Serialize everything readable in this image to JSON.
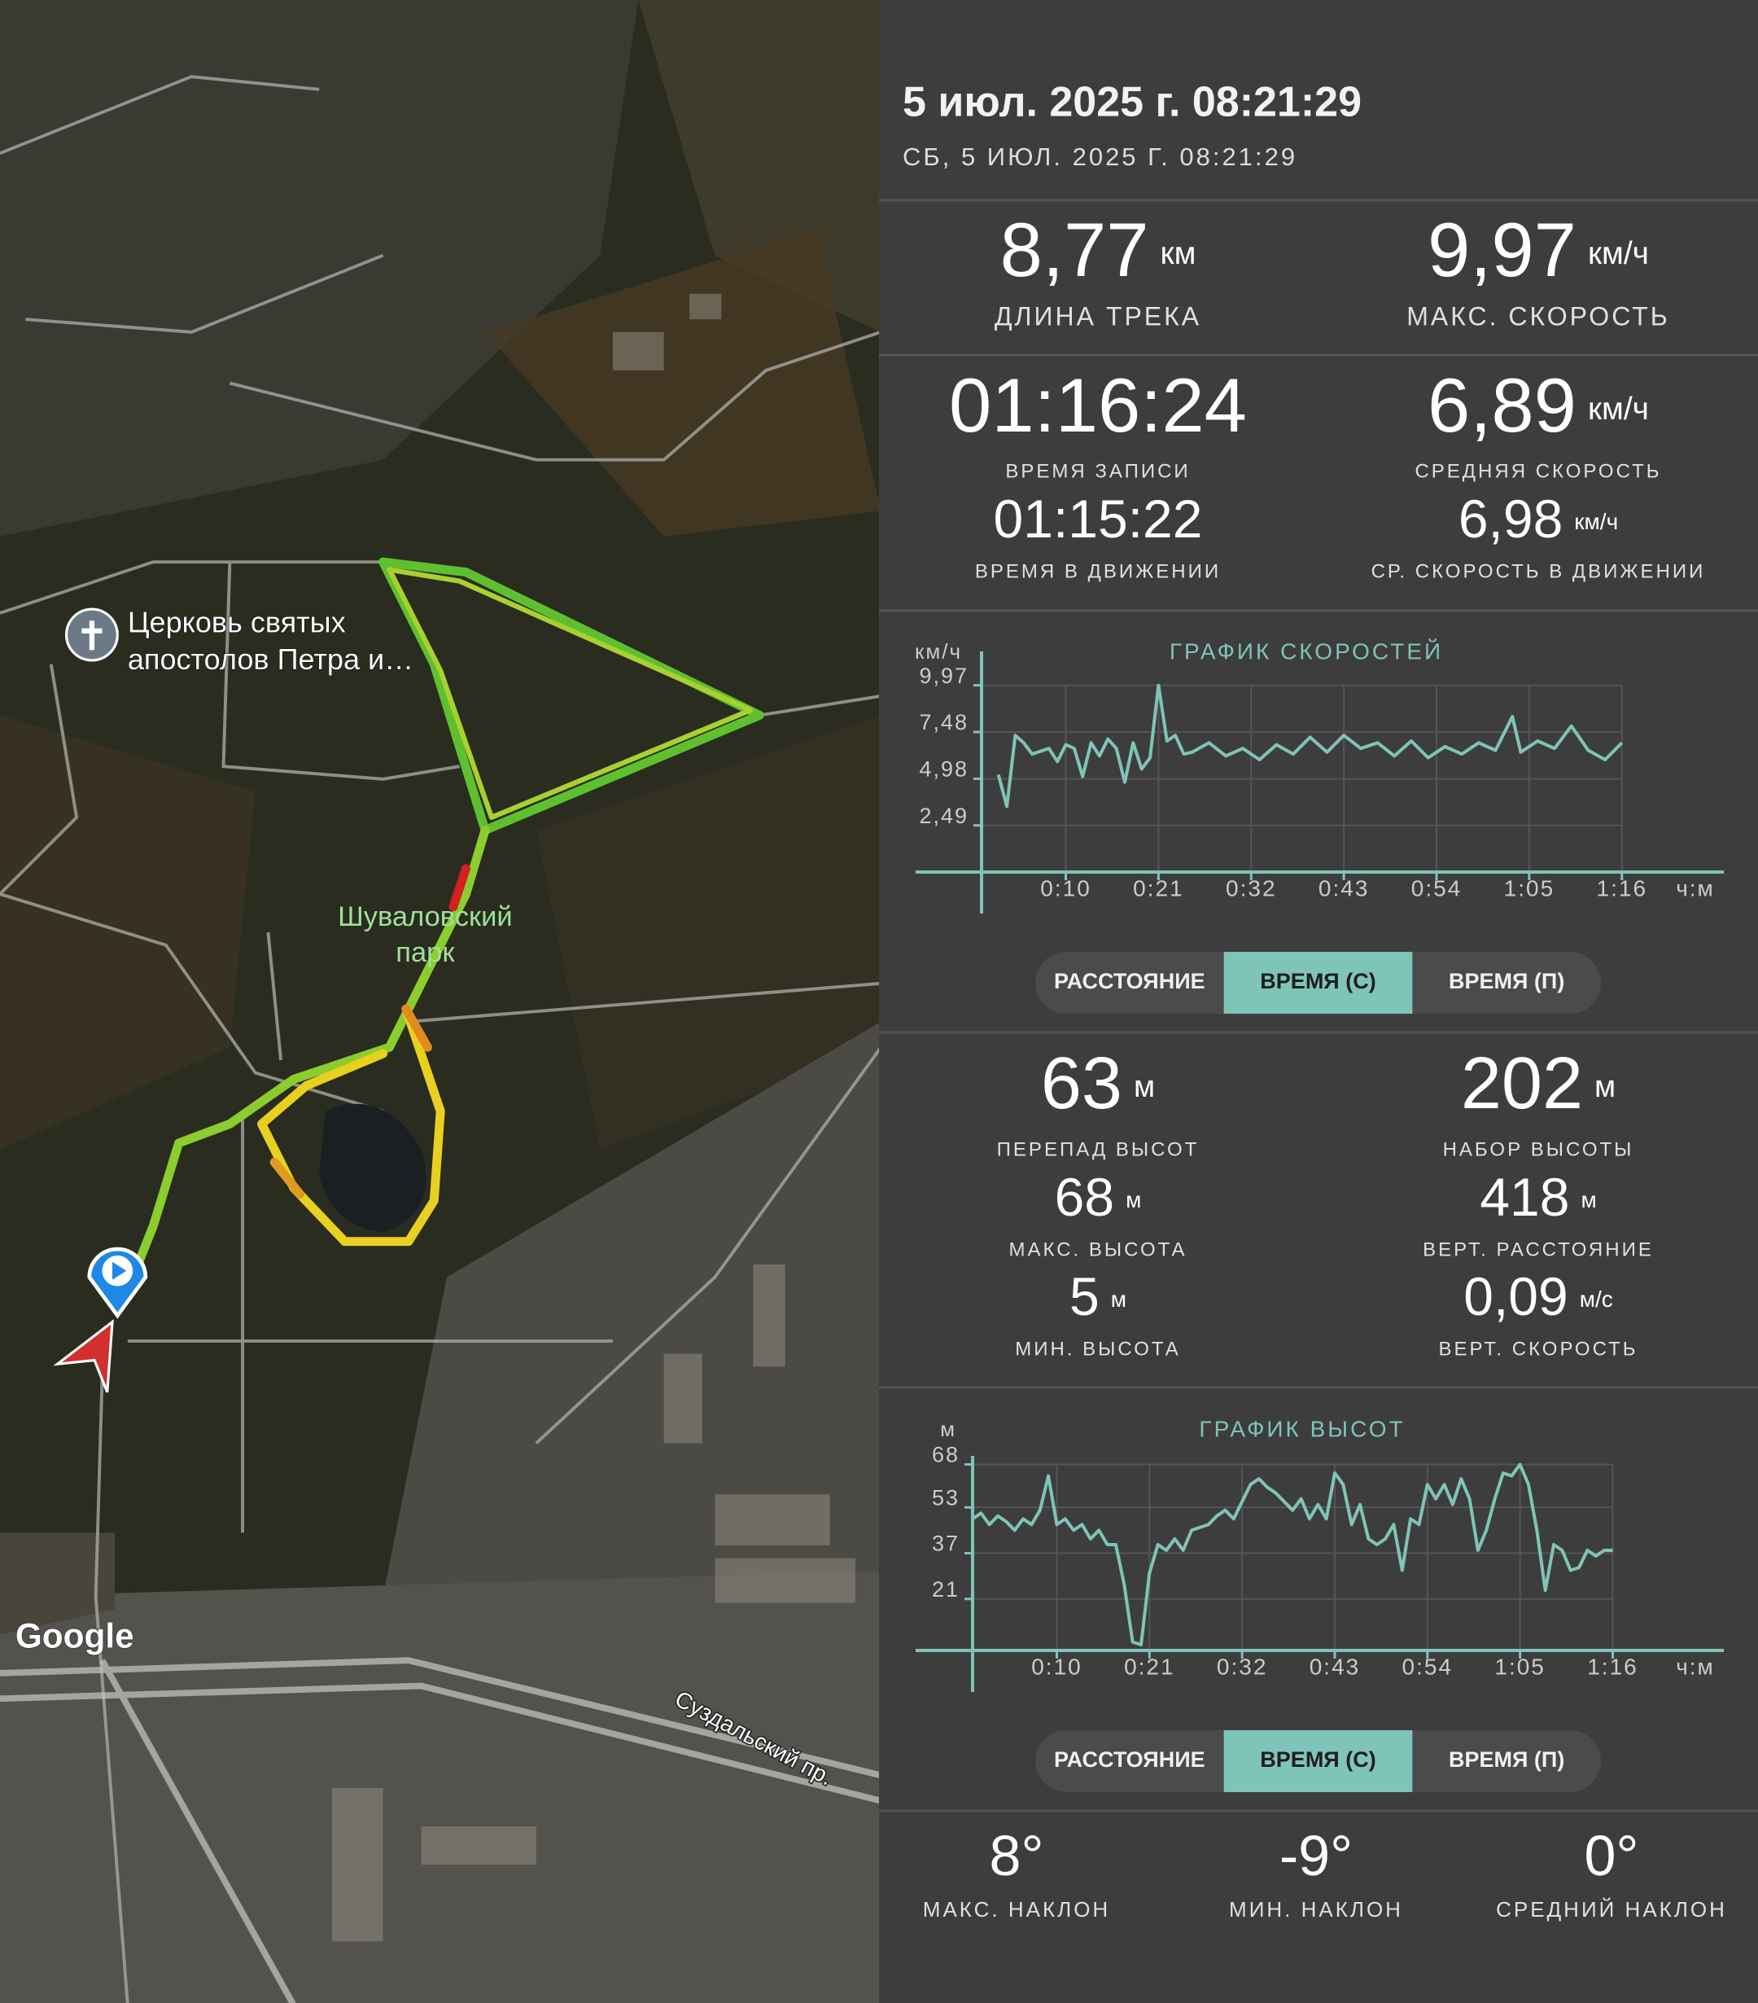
{
  "header": {
    "title": "5 июл. 2025 г. 08:21:29",
    "subtitle": "СБ, 5 ИЮЛ. 2025 Г. 08:21:29"
  },
  "map": {
    "poi": [
      "Церковь святых",
      "апостолов Петра и…"
    ],
    "park": [
      "Шуваловский",
      "парк"
    ],
    "street": "Суздальский пр.",
    "attribution": "Google"
  },
  "track_stats": [
    {
      "value": "8,77",
      "unit": "км",
      "label": "ДЛИНА ТРЕКА"
    },
    {
      "value": "9,97",
      "unit": "км/ч",
      "label": "МАКС. СКОРОСТЬ"
    },
    {
      "value": "01:16:24",
      "label": "ВРЕМЯ ЗАПИСИ"
    },
    {
      "value": "6,89",
      "unit": "км/ч",
      "label": "СРЕДНЯЯ СКОРОСТЬ"
    },
    {
      "value": "01:15:22",
      "label": "ВРЕМЯ В ДВИЖЕНИИ"
    },
    {
      "value": "6,98",
      "unit": "км/ч",
      "label": "СР. СКОРОСТЬ В ДВИЖЕНИИ"
    }
  ],
  "elevation_stats": [
    {
      "value": "63",
      "unit": "м",
      "label": "ПЕРЕПАД ВЫСОТ"
    },
    {
      "value": "202",
      "unit": "м",
      "label": "НАБОР ВЫСОТЫ"
    },
    {
      "value": "68",
      "unit": "м",
      "label": "МАКС. ВЫСОТА"
    },
    {
      "value": "418",
      "unit": "м",
      "label": "ВЕРТ. РАССТОЯНИЕ"
    },
    {
      "value": "5",
      "unit": "м",
      "label": "МИН. ВЫСОТА"
    },
    {
      "value": "0,09",
      "unit": "м/с",
      "label": "ВЕРТ. СКОРОСТЬ"
    }
  ],
  "slope_stats": [
    {
      "value": "8°",
      "label": "МАКС. НАКЛОН"
    },
    {
      "value": "-9°",
      "label": "МИН. НАКЛОН"
    },
    {
      "value": "0°",
      "label": "СРЕДНИЙ НАКЛОН"
    }
  ],
  "chart_toggles": [
    {
      "options": [
        "РАССТОЯНИЕ",
        "ВРЕМЯ (С)",
        "ВРЕМЯ (П)"
      ],
      "selected": 1
    },
    {
      "options": [
        "РАССТОЯНИЕ",
        "ВРЕМЯ (С)",
        "ВРЕМЯ (П)"
      ],
      "selected": 1
    }
  ],
  "chart_data": [
    {
      "type": "line",
      "title": "ГРАФИК СКОРОСТЕЙ",
      "y_label": "км/ч",
      "x_label": "ч:м",
      "color": "#7fc4b8",
      "grid": true,
      "xlim": [
        0,
        88
      ],
      "ylim": [
        0,
        11
      ],
      "xticks": [
        {
          "value": 10,
          "label": "0:10"
        },
        {
          "value": 21,
          "label": "0:21"
        },
        {
          "value": 32,
          "label": "0:32"
        },
        {
          "value": 43,
          "label": "0:43"
        },
        {
          "value": 54,
          "label": "0:54"
        },
        {
          "value": 65,
          "label": "1:05"
        },
        {
          "value": 76,
          "label": "1:16"
        }
      ],
      "yticks": [
        {
          "value": 9.97,
          "label": "9,97"
        },
        {
          "value": 7.48,
          "label": "7,48"
        },
        {
          "value": 4.98,
          "label": "4,98"
        },
        {
          "value": 2.49,
          "label": "2,49"
        }
      ],
      "x": [
        2,
        3,
        4,
        5,
        6,
        8,
        9,
        10,
        11,
        12,
        13,
        14,
        15,
        16,
        17,
        18,
        19,
        20,
        21,
        22,
        23,
        24,
        25,
        27,
        29,
        31,
        33,
        35,
        37,
        39,
        41,
        43,
        45,
        47,
        49,
        51,
        53,
        55,
        57,
        59,
        61,
        63,
        64,
        66,
        68,
        70,
        72,
        74,
        76
      ],
      "values": [
        5.2,
        3.5,
        7.3,
        6.9,
        6.3,
        6.6,
        5.9,
        6.8,
        6.6,
        5.1,
        6.9,
        6.2,
        7.1,
        6.6,
        4.8,
        6.9,
        5.5,
        6.1,
        9.97,
        7.0,
        7.3,
        6.3,
        6.4,
        6.9,
        6.2,
        6.6,
        6.0,
        6.8,
        6.3,
        7.2,
        6.4,
        7.3,
        6.6,
        6.9,
        6.2,
        7.0,
        6.1,
        6.7,
        6.3,
        6.9,
        6.5,
        8.3,
        6.4,
        7.0,
        6.6,
        7.8,
        6.5,
        6.0,
        6.9
      ]
    },
    {
      "type": "line",
      "title": "ГРАФИК ВЫСОТ",
      "y_label": "м",
      "x_label": "ч:м",
      "color": "#7fc4b8",
      "grid": true,
      "xlim": [
        0,
        89
      ],
      "ylim": [
        3,
        75
      ],
      "xticks": [
        {
          "value": 10,
          "label": "0:10"
        },
        {
          "value": 21,
          "label": "0:21"
        },
        {
          "value": 32,
          "label": "0:32"
        },
        {
          "value": 43,
          "label": "0:43"
        },
        {
          "value": 54,
          "label": "0:54"
        },
        {
          "value": 65,
          "label": "1:05"
        },
        {
          "value": 76,
          "label": "1:16"
        }
      ],
      "yticks": [
        68,
        53,
        37,
        21
      ],
      "x": [
        0,
        1,
        2,
        3,
        4,
        5,
        6,
        7,
        8,
        9,
        10,
        11,
        12,
        13,
        14,
        15,
        16,
        17,
        18,
        19,
        20,
        21,
        22,
        23,
        24,
        25,
        26,
        27,
        28,
        29,
        30,
        31,
        32,
        33,
        34,
        35,
        36,
        37,
        38,
        39,
        40,
        41,
        42,
        43,
        44,
        45,
        46,
        47,
        48,
        49,
        50,
        51,
        52,
        53,
        54,
        55,
        56,
        57,
        58,
        59,
        60,
        61,
        62,
        63,
        64,
        65,
        66,
        67,
        68,
        69,
        70,
        71,
        72,
        73,
        74,
        75,
        76
      ],
      "values": [
        49,
        51,
        47,
        50,
        48,
        45,
        49,
        47,
        52,
        64,
        47,
        49,
        45,
        47,
        42,
        45,
        40,
        40,
        26,
        6,
        5,
        30,
        40,
        38,
        42,
        38,
        45,
        46,
        47,
        50,
        52,
        49,
        55,
        61,
        63,
        60,
        58,
        55,
        52,
        56,
        49,
        54,
        49,
        65,
        61,
        47,
        54,
        42,
        40,
        42,
        47,
        31,
        49,
        47,
        61,
        56,
        61,
        54,
        63,
        56,
        38,
        45,
        56,
        65,
        64,
        68,
        61,
        45,
        24,
        40,
        38,
        31,
        32,
        38,
        36,
        38,
        38
      ]
    }
  ]
}
